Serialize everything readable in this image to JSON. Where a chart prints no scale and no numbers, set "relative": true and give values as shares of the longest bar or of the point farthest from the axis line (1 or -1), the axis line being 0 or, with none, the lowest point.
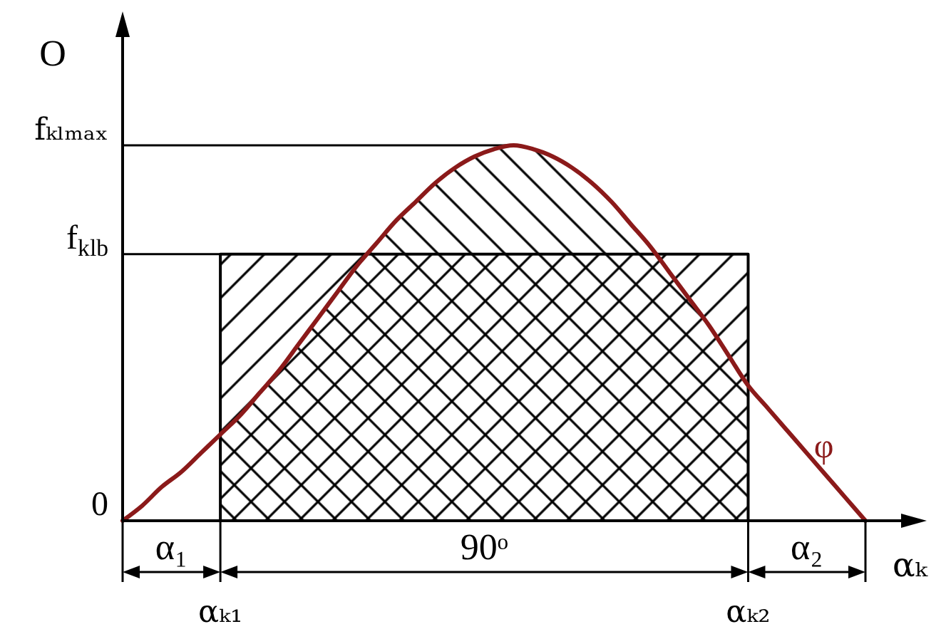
{
  "chart_data": {
    "type": "line",
    "relative": true,
    "ylabel": "O",
    "xlabel": "αₖ",
    "categories": [
      null,
      null,
      null,
      null,
      null,
      "αₖ₁",
      null,
      null,
      null,
      null,
      null,
      null,
      null,
      null,
      null,
      null,
      null,
      null,
      null,
      null,
      null,
      null,
      null,
      null,
      null,
      null,
      null,
      null,
      null,
      null,
      null,
      null,
      "αₖ₂",
      null,
      null,
      null,
      null,
      null,
      null
    ],
    "series": [
      {
        "type": "area",
        "color": "#000000",
        "values": [
          null,
          null,
          null,
          null,
          null,
          0.71,
          0.71,
          0.71,
          0.71,
          0.71,
          0.71,
          0.71,
          0.71,
          0.71,
          0.71,
          0.71,
          0.71,
          0.71,
          0.71,
          0.71,
          0.71,
          0.71,
          0.71,
          0.71,
          0.71,
          0.71,
          0.71,
          0.71,
          0.71,
          0.71,
          0.71,
          0.71,
          0.71,
          null,
          null,
          null,
          null,
          null,
          null
        ]
      },
      {
        "name": "φ",
        "color": "#8b1a1a",
        "values": [
          0,
          0.04,
          0.09,
          0.13,
          0.18,
          0.23,
          0.28,
          0.34,
          0.4,
          0.47,
          0.54,
          0.61,
          0.68,
          0.74,
          0.8,
          0.85,
          0.9,
          0.94,
          0.97,
          0.99,
          1,
          0.99,
          0.97,
          0.94,
          0.9,
          0.85,
          0.79,
          0.73,
          0.66,
          0.59,
          0.52,
          0.44,
          0.36,
          0.3,
          0.24,
          0.18,
          0.12,
          0.06,
          0
        ],
        "lower": [
          null,
          null,
          null,
          null,
          null,
          0,
          0,
          0,
          0,
          0,
          0,
          0,
          0,
          0,
          0,
          0,
          0,
          0,
          0,
          0,
          0,
          0,
          0,
          0,
          0,
          0,
          0,
          0,
          0,
          0,
          0,
          0,
          0,
          null,
          null,
          null,
          null,
          null,
          null
        ],
        "upper": [
          null,
          null,
          null,
          null,
          null,
          0.23,
          0.28,
          0.34,
          0.4,
          0.47,
          0.54,
          0.61,
          0.68,
          0.74,
          0.8,
          0.85,
          0.9,
          0.94,
          0.97,
          0.99,
          1,
          0.99,
          0.97,
          0.94,
          0.9,
          0.85,
          0.79,
          0.73,
          0.66,
          0.59,
          0.52,
          0.44,
          0.36,
          null,
          null,
          null,
          null,
          null,
          null
        ]
      }
    ],
    "ref_lines": [
      {
        "axis": "y",
        "value": 1,
        "label": "fₖₗₘₐₓ"
      },
      {
        "axis": "y",
        "value": 0.71,
        "label": "f$_{klb}$"
      }
    ],
    "annotations": [
      "0",
      "α₁",
      "90ᵒ",
      "α₂"
    ]
  }
}
